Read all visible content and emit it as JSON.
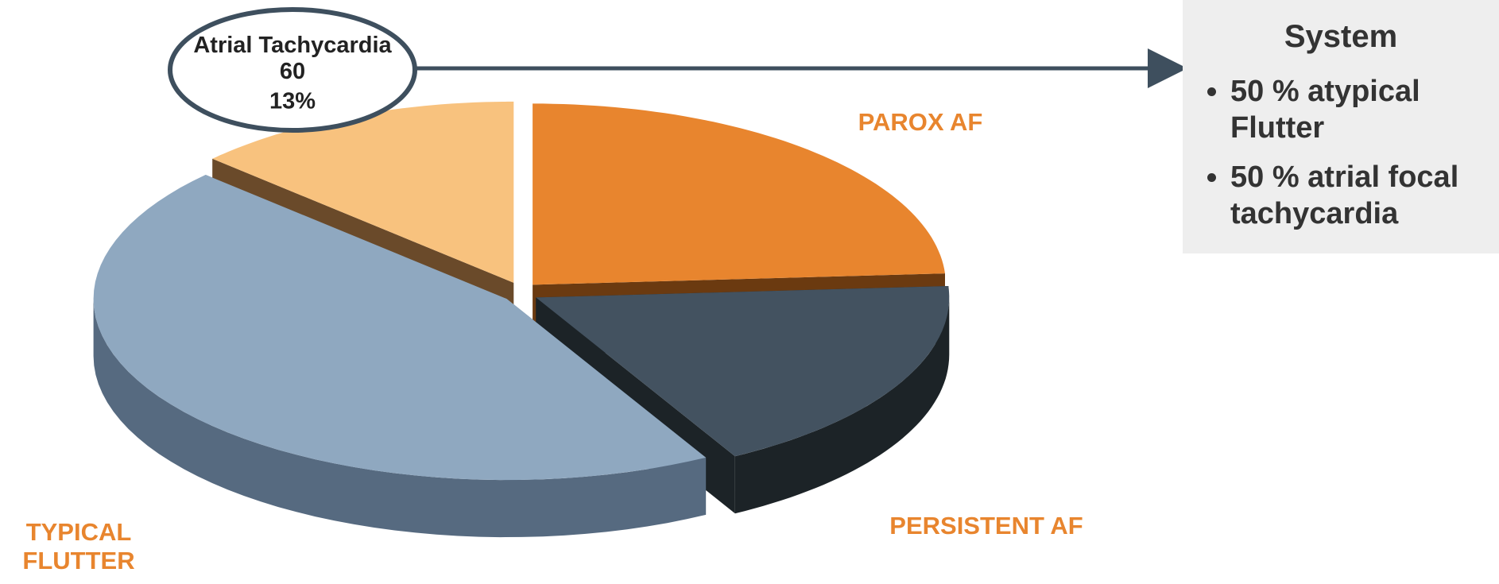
{
  "chart_data": {
    "type": "pie",
    "categories": [
      "PAROX AF",
      "PERSISTENT AF",
      "TYPICAL FLUTTER",
      "Atrial Tachycardia 60"
    ],
    "values": [
      24,
      18,
      45,
      13
    ],
    "value_labels": [
      null,
      null,
      null,
      "13%"
    ],
    "colors": [
      "#e8852e",
      "#435260",
      "#8fa8c0",
      "#f8c27e"
    ],
    "side_colors": [
      "#6b3a10",
      "#1c2327",
      "#566a80",
      "#6a4a2a"
    ]
  },
  "panel": {
    "heading": "System",
    "bullets": [
      "50 % atypical Flutter",
      "50 % atrial focal tachycardia"
    ]
  }
}
